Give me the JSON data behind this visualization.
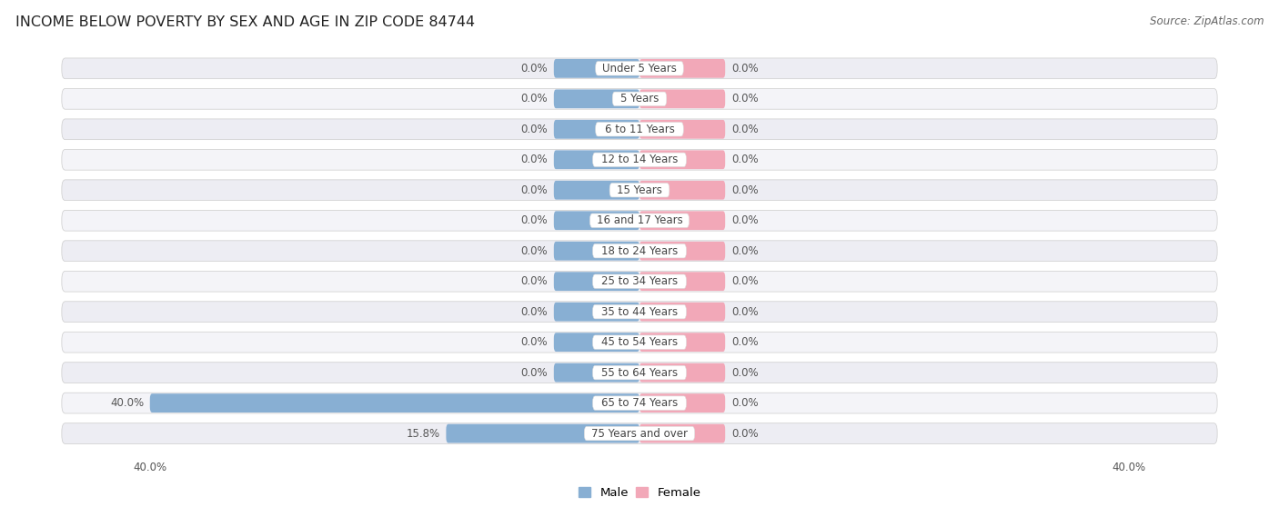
{
  "title": "INCOME BELOW POVERTY BY SEX AND AGE IN ZIP CODE 84744",
  "source": "Source: ZipAtlas.com",
  "categories": [
    "Under 5 Years",
    "5 Years",
    "6 to 11 Years",
    "12 to 14 Years",
    "15 Years",
    "16 and 17 Years",
    "18 to 24 Years",
    "25 to 34 Years",
    "35 to 44 Years",
    "45 to 54 Years",
    "55 to 64 Years",
    "65 to 74 Years",
    "75 Years and over"
  ],
  "male_values": [
    0.0,
    0.0,
    0.0,
    0.0,
    0.0,
    0.0,
    0.0,
    0.0,
    0.0,
    0.0,
    0.0,
    40.0,
    15.8
  ],
  "female_values": [
    0.0,
    0.0,
    0.0,
    0.0,
    0.0,
    0.0,
    0.0,
    0.0,
    0.0,
    0.0,
    0.0,
    0.0,
    0.0
  ],
  "male_color": "#88afd3",
  "female_color": "#f2a8b8",
  "row_bg_light": "#ededf3",
  "row_bg_dark": "#e2e2ea",
  "label_color": "#444444",
  "value_color": "#555555",
  "axis_max": 40.0,
  "zero_bar_fill": 7.0,
  "title_fontsize": 11.5,
  "source_fontsize": 8.5,
  "value_fontsize": 8.5,
  "category_fontsize": 8.5,
  "legend_fontsize": 9.5
}
